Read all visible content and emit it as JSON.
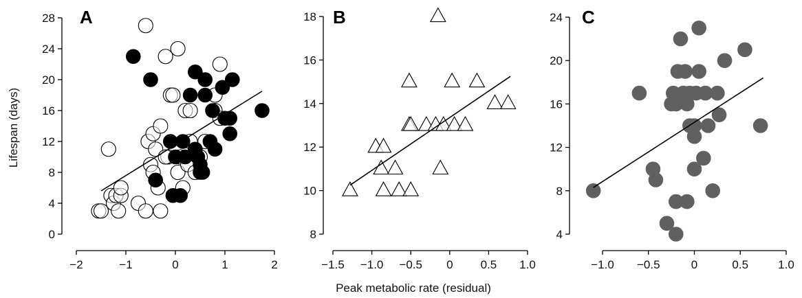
{
  "figure": {
    "ylabel": "Lifespan (days)",
    "xlabel": "Peak metabolic rate (residual)"
  },
  "chart_data": [
    {
      "panel": "A",
      "type": "scatter",
      "xlim": [
        -2,
        2
      ],
      "ylim": [
        0,
        28
      ],
      "xticks": [
        -2,
        -1,
        0,
        1,
        2
      ],
      "yticks": [
        0,
        4,
        8,
        12,
        16,
        20,
        24,
        28
      ],
      "xtick_labels": [
        "−2",
        "−1",
        "0",
        "1",
        "2"
      ],
      "ytick_labels": [
        "0",
        "4",
        "8",
        "12",
        "16",
        "20",
        "24",
        "28"
      ],
      "series": [
        {
          "marker": "open-circle",
          "color": "#000000",
          "points": [
            [
              -1.55,
              3
            ],
            [
              -1.5,
              3
            ],
            [
              -1.35,
              11
            ],
            [
              -1.3,
              5
            ],
            [
              -1.25,
              4
            ],
            [
              -1.2,
              5
            ],
            [
              -1.15,
              3
            ],
            [
              -1.1,
              5
            ],
            [
              -1.1,
              6
            ],
            [
              -0.75,
              4
            ],
            [
              -0.6,
              27
            ],
            [
              -0.6,
              3
            ],
            [
              -0.55,
              12
            ],
            [
              -0.5,
              9
            ],
            [
              -0.45,
              8
            ],
            [
              -0.45,
              13
            ],
            [
              -0.4,
              11
            ],
            [
              -0.35,
              6
            ],
            [
              -0.3,
              14
            ],
            [
              -0.3,
              3
            ],
            [
              -0.2,
              23
            ],
            [
              -0.15,
              10
            ],
            [
              -0.1,
              18
            ],
            [
              -0.05,
              18
            ],
            [
              0.05,
              24
            ],
            [
              0.05,
              8
            ],
            [
              0.1,
              10
            ],
            [
              0.15,
              6
            ],
            [
              0.2,
              16
            ],
            [
              0.25,
              9
            ],
            [
              0.3,
              12
            ],
            [
              0.3,
              16
            ],
            [
              0.5,
              10
            ],
            [
              0.6,
              12
            ],
            [
              0.8,
              18
            ],
            [
              0.8,
              16
            ],
            [
              0.9,
              22
            ],
            [
              0.9,
              15
            ],
            [
              0.4,
              8
            ],
            [
              -0.2,
              10
            ]
          ]
        },
        {
          "marker": "filled-circle",
          "color": "#000000",
          "points": [
            [
              -0.85,
              23
            ],
            [
              -0.5,
              20
            ],
            [
              -0.4,
              7
            ],
            [
              -0.1,
              12
            ],
            [
              -0.05,
              5
            ],
            [
              0,
              10
            ],
            [
              0.1,
              5
            ],
            [
              0.15,
              12
            ],
            [
              0.2,
              10
            ],
            [
              0.3,
              18
            ],
            [
              0.4,
              21
            ],
            [
              0.4,
              11
            ],
            [
              0.45,
              10
            ],
            [
              0.5,
              9
            ],
            [
              0.5,
              8
            ],
            [
              0.55,
              8
            ],
            [
              0.6,
              20
            ],
            [
              0.6,
              18
            ],
            [
              0.7,
              12
            ],
            [
              0.75,
              16
            ],
            [
              0.8,
              11
            ],
            [
              0.95,
              19
            ],
            [
              1.0,
              15
            ],
            [
              1.1,
              15
            ],
            [
              1.15,
              20
            ],
            [
              1.1,
              13
            ],
            [
              1.75,
              16
            ]
          ]
        }
      ],
      "trend": {
        "x1": -1.5,
        "y1": 5.6,
        "x2": 1.75,
        "y2": 18.5
      }
    },
    {
      "panel": "B",
      "type": "scatter",
      "xlim": [
        -1.7,
        1.0
      ],
      "ylim": [
        7.5,
        18.2
      ],
      "xticks": [
        -1.5,
        -1.0,
        -0.5,
        0,
        0.5,
        1.0
      ],
      "yticks": [
        8,
        10,
        12,
        14,
        16,
        18
      ],
      "xtick_labels": [
        "−1.5",
        "−1.0",
        "−0.5",
        "0",
        "0.5",
        "1.0"
      ],
      "ytick_labels": [
        "8",
        "10",
        "12",
        "14",
        "16",
        "18"
      ],
      "series": [
        {
          "marker": "open-triangle",
          "color": "#000000",
          "points": [
            [
              -1.28,
              10
            ],
            [
              -0.95,
              12
            ],
            [
              -0.88,
              11
            ],
            [
              -0.85,
              12
            ],
            [
              -0.85,
              10
            ],
            [
              -0.7,
              11
            ],
            [
              -0.65,
              10
            ],
            [
              -0.5,
              10
            ],
            [
              -0.52,
              13
            ],
            [
              -0.52,
              15
            ],
            [
              -0.5,
              13
            ],
            [
              -0.3,
              13
            ],
            [
              -0.18,
              13
            ],
            [
              -0.15,
              18
            ],
            [
              -0.12,
              11
            ],
            [
              -0.08,
              13
            ],
            [
              0.03,
              15
            ],
            [
              0.06,
              13
            ],
            [
              0.2,
              13
            ],
            [
              0.35,
              15
            ],
            [
              0.58,
              14
            ],
            [
              0.75,
              14
            ]
          ]
        }
      ],
      "trend": {
        "x1": -1.28,
        "y1": 10.25,
        "x2": 0.78,
        "y2": 15.25
      }
    },
    {
      "panel": "C",
      "type": "scatter",
      "xlim": [
        -1.3,
        1.0
      ],
      "ylim": [
        3.5,
        24
      ],
      "xticks": [
        -1.0,
        -0.5,
        0,
        0.5,
        1.0
      ],
      "yticks": [
        4,
        8,
        12,
        16,
        20,
        24
      ],
      "xtick_labels": [
        "−1.0",
        "−0.5",
        "0",
        "0.5",
        "1.0"
      ],
      "ytick_labels": [
        "4",
        "8",
        "12",
        "16",
        "20",
        "24"
      ],
      "series": [
        {
          "marker": "filled-circle",
          "color": "#606060",
          "points": [
            [
              -1.1,
              8
            ],
            [
              -0.6,
              17
            ],
            [
              -0.45,
              10
            ],
            [
              -0.42,
              9
            ],
            [
              -0.3,
              5
            ],
            [
              -0.25,
              16
            ],
            [
              -0.23,
              17
            ],
            [
              -0.2,
              16
            ],
            [
              -0.2,
              7
            ],
            [
              -0.2,
              4
            ],
            [
              -0.18,
              19
            ],
            [
              -0.15,
              22
            ],
            [
              -0.12,
              17
            ],
            [
              -0.1,
              19
            ],
            [
              -0.08,
              16
            ],
            [
              -0.08,
              7
            ],
            [
              -0.05,
              17
            ],
            [
              -0.05,
              14
            ],
            [
              0,
              14
            ],
            [
              0,
              13
            ],
            [
              0,
              10
            ],
            [
              0.02,
              17
            ],
            [
              0.05,
              23
            ],
            [
              0.05,
              19
            ],
            [
              0.1,
              11
            ],
            [
              0.12,
              17
            ],
            [
              0.15,
              14
            ],
            [
              0.2,
              8
            ],
            [
              0.25,
              17
            ],
            [
              0.27,
              15
            ],
            [
              0.33,
              20
            ],
            [
              0.55,
              21
            ],
            [
              0.72,
              14
            ],
            [
              -0.2,
              16
            ]
          ]
        }
      ],
      "trend": {
        "x1": -1.1,
        "y1": 8.3,
        "x2": 0.75,
        "y2": 18.4
      }
    }
  ]
}
